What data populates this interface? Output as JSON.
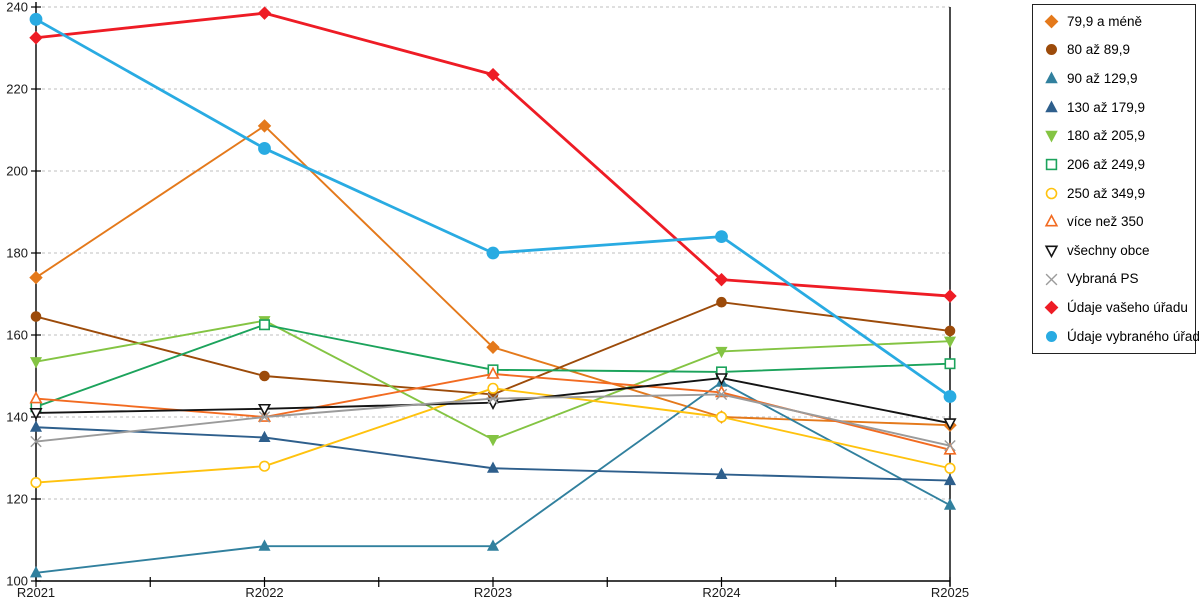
{
  "chart_data": {
    "type": "line",
    "title": "",
    "xlabel": "",
    "ylabel": "",
    "x_categories": [
      "R2021",
      "R2022",
      "R2023",
      "R2024",
      "R2025"
    ],
    "y_ticks": [
      100,
      120,
      140,
      160,
      180,
      200,
      220,
      240
    ],
    "ylim": [
      100,
      240
    ],
    "grid": "horizontal-dashed",
    "legend_position": "right-top-boxed",
    "series": [
      {
        "name": "79,9 a méně",
        "color": "#E4791B",
        "marker": "diamond",
        "fill": "solid",
        "emphasis": false,
        "values": [
          174,
          211,
          157,
          140,
          138
        ]
      },
      {
        "name": "80 až 89,9",
        "color": "#9C4B0A",
        "marker": "circle",
        "fill": "solid",
        "emphasis": false,
        "values": [
          164.5,
          150,
          145.5,
          168,
          161
        ]
      },
      {
        "name": "90 až 129,9",
        "color": "#31809E",
        "marker": "triangle-up",
        "fill": "solid",
        "emphasis": false,
        "values": [
          102,
          108.5,
          108.5,
          148.5,
          118.5
        ]
      },
      {
        "name": "130 až 179,9",
        "color": "#2E5F8C",
        "marker": "triangle-up",
        "fill": "solid",
        "emphasis": false,
        "values": [
          137.5,
          135,
          127.5,
          126,
          124.5
        ]
      },
      {
        "name": "180 až 205,9",
        "color": "#84C443",
        "marker": "triangle-down",
        "fill": "solid",
        "emphasis": false,
        "values": [
          153.5,
          163.5,
          134.5,
          156,
          158.5
        ]
      },
      {
        "name": "206 až 249,9",
        "color": "#1CA35C",
        "marker": "square",
        "fill": "open",
        "emphasis": false,
        "values": [
          142.5,
          162.5,
          151.5,
          151,
          153
        ]
      },
      {
        "name": "250 až 349,9",
        "color": "#FFC20E",
        "marker": "circle",
        "fill": "open",
        "emphasis": false,
        "values": [
          124,
          128,
          147,
          140,
          127.5
        ]
      },
      {
        "name": "více než 350",
        "color": "#F26B21",
        "marker": "triangle-up",
        "fill": "open",
        "emphasis": false,
        "values": [
          144.5,
          140,
          150.5,
          146,
          132
        ]
      },
      {
        "name": "všechny obce",
        "color": "#141414",
        "marker": "triangle-down",
        "fill": "open",
        "emphasis": false,
        "values": [
          141,
          142,
          143.5,
          149.5,
          138.5
        ]
      },
      {
        "name": "Vybraná PS",
        "color": "#9B9B9B",
        "marker": "x",
        "fill": "open",
        "emphasis": false,
        "values": [
          134,
          140,
          144.5,
          145.5,
          133
        ]
      },
      {
        "name": "Údaje vašeho úřadu",
        "color": "#EE1C25",
        "marker": "diamond",
        "fill": "solid",
        "emphasis": true,
        "values": [
          232.5,
          238.5,
          223.5,
          173.5,
          169.5
        ]
      },
      {
        "name": "Údaje vybraného úřadu",
        "color": "#29ABE2",
        "marker": "circle",
        "fill": "solid",
        "emphasis": true,
        "values": [
          237,
          205.5,
          180,
          184,
          145
        ]
      }
    ]
  }
}
